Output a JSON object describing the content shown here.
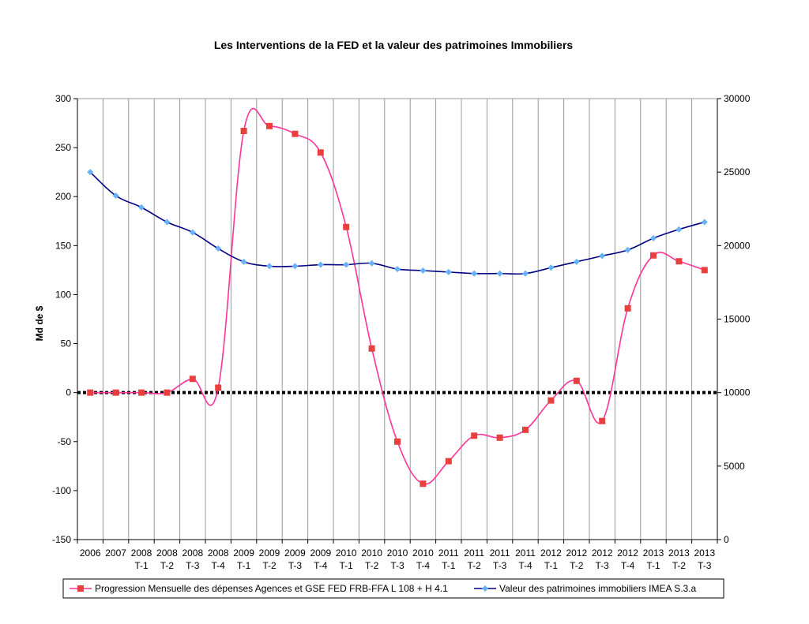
{
  "chart_data": {
    "type": "line",
    "title": "Les Interventions de la FED et la valeur des patrimoines Immobiliers",
    "ylabel": "Md de $",
    "ylabel_right": "",
    "ylim": [
      -150,
      300
    ],
    "yticks": [
      -150,
      -100,
      -50,
      0,
      50,
      100,
      150,
      200,
      250,
      300
    ],
    "ylim_right": [
      0,
      30000
    ],
    "yticks_right": [
      0,
      5000,
      10000,
      15000,
      20000,
      25000,
      30000
    ],
    "grid": "vertical",
    "legend_position": "bottom",
    "categories": [
      [
        "2006",
        ""
      ],
      [
        "2007",
        ""
      ],
      [
        "2008",
        "T-1"
      ],
      [
        "2008",
        "T-2"
      ],
      [
        "2008",
        "T-3"
      ],
      [
        "2008",
        "T-4"
      ],
      [
        "2009",
        "T-1"
      ],
      [
        "2009",
        "T-2"
      ],
      [
        "2009",
        "T-3"
      ],
      [
        "2009",
        "T-4"
      ],
      [
        "2010",
        "T-1"
      ],
      [
        "2010",
        "T-2"
      ],
      [
        "2010",
        "T-3"
      ],
      [
        "2010",
        "T-4"
      ],
      [
        "2011",
        "T-1"
      ],
      [
        "2011",
        "T-2"
      ],
      [
        "2011",
        "T-3"
      ],
      [
        "2011",
        "T-4"
      ],
      [
        "2012",
        "T-1"
      ],
      [
        "2012",
        "T-2"
      ],
      [
        "2012",
        "T-3"
      ],
      [
        "2012",
        "T-4"
      ],
      [
        "2013",
        "T-1"
      ],
      [
        "2013",
        "T-2"
      ],
      [
        "2013",
        "T-3"
      ]
    ],
    "series": [
      {
        "name": "Progression Mensuelle des dépenses Agences et GSE FED FRB-FFA L 108 + H 4.1",
        "axis": "left",
        "color": "#ff3399",
        "marker_color": "#e8403f",
        "marker": "square",
        "values": [
          0,
          0,
          0,
          0,
          14,
          5,
          267,
          272,
          264,
          245,
          169,
          45,
          -50,
          -93,
          -70,
          -44,
          -46,
          -38,
          -8,
          12,
          -29,
          86,
          140,
          134,
          125
        ]
      },
      {
        "name": "Valeur des patrimoines immobiliers IMEA S.3.a",
        "axis": "right",
        "color": "#000080",
        "marker_color": "#66b2ff",
        "marker": "diamond",
        "values": [
          25000,
          23400,
          22600,
          21600,
          20900,
          19800,
          18900,
          18600,
          18600,
          18700,
          18700,
          18800,
          18400,
          18300,
          18200,
          18100,
          18100,
          18100,
          18500,
          18900,
          19300,
          19700,
          20500,
          21100,
          21600
        ]
      }
    ],
    "reference_line": {
      "y": 0,
      "style": "dotted",
      "color": "#000000"
    }
  }
}
